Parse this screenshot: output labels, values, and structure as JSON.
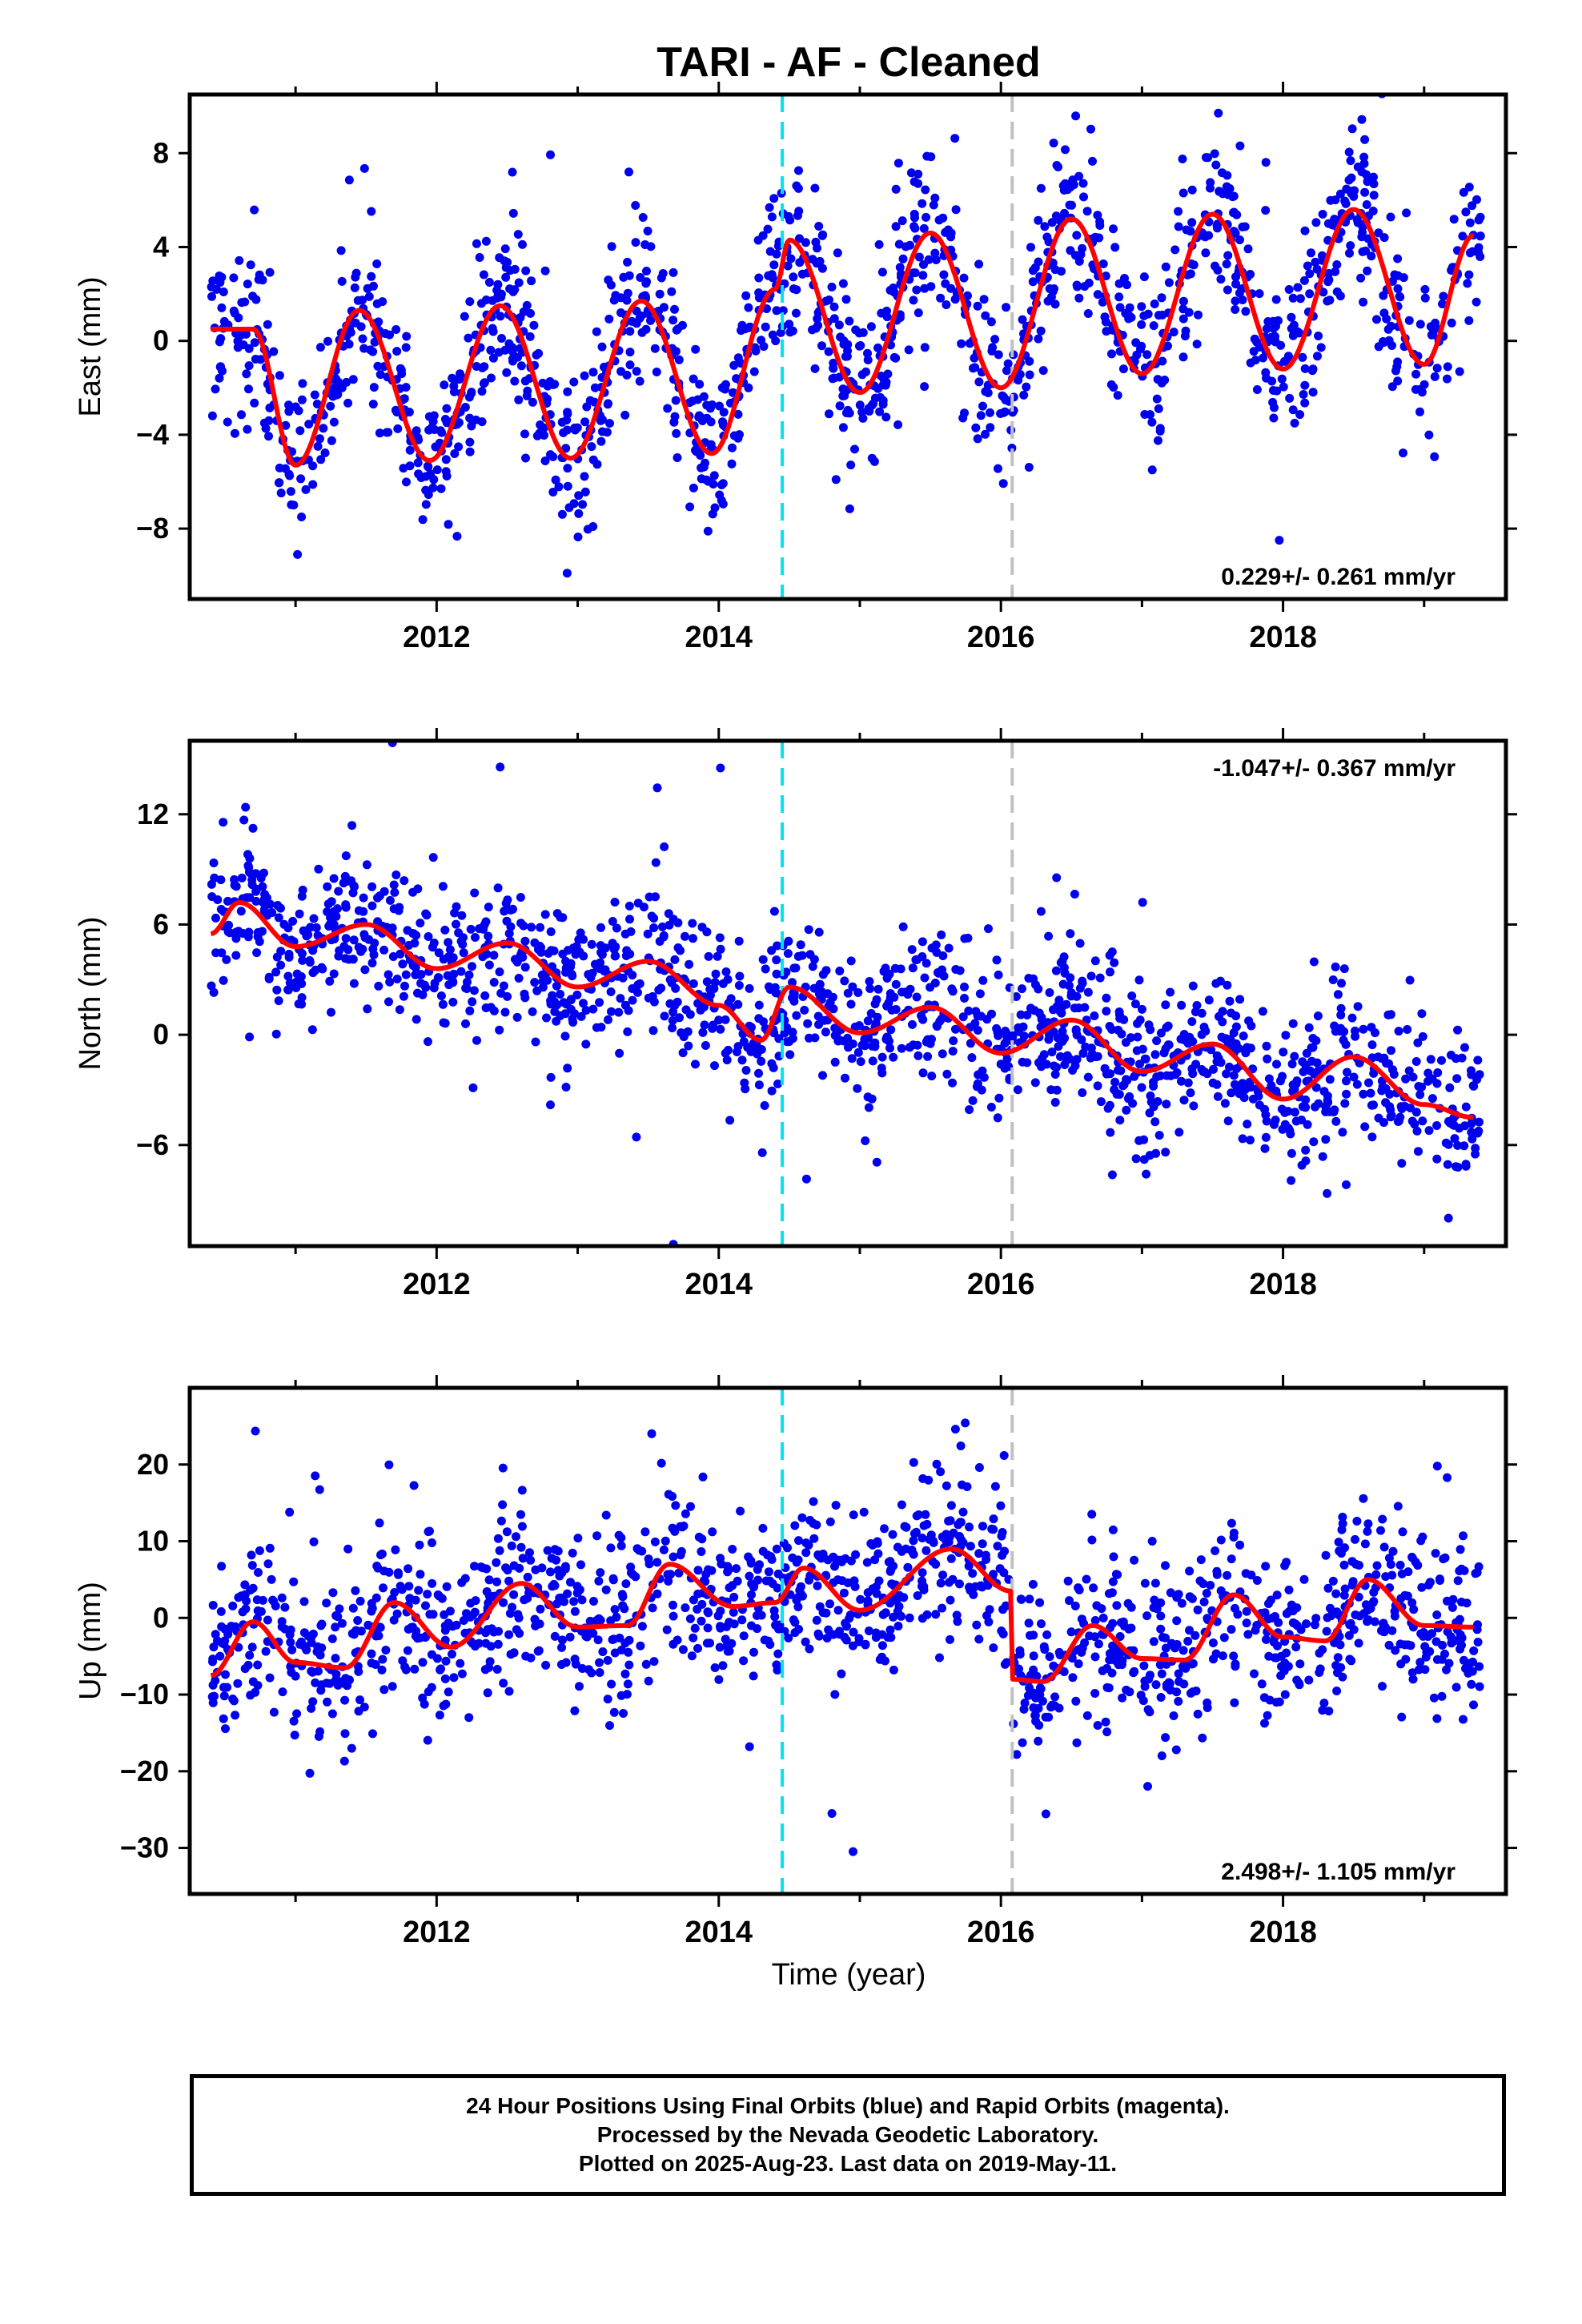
{
  "title": "TARI  - AF - Cleaned",
  "xlabel": "Time (year)",
  "footer": {
    "line1": "24 Hour Positions Using Final Orbits (blue) and Rapid Orbits (magenta).",
    "line2": "Processed by the Nevada Geodetic Laboratory.",
    "line3": "Plotted on 2025-Aug-23. Last data on 2019-May-11."
  },
  "colors": {
    "points": "#0000ee",
    "model": "#ff0000",
    "equipment_change": "#00e5ee",
    "other_change": "#c0c0c0"
  },
  "chart_data": [
    {
      "type": "scatter",
      "name": "east",
      "ylabel": "East (mm)",
      "xlim": [
        2010.25,
        2019.58
      ],
      "ylim": [
        -11,
        10.5
      ],
      "yticks": [
        -8,
        -4,
        0,
        4,
        8
      ],
      "ytick_labels": [
        "−8",
        "−4",
        "0",
        "4",
        "8"
      ],
      "xticks": [
        2012,
        2014,
        2016,
        2018
      ],
      "xtick_labels": [
        "2012",
        "2014",
        "2016",
        "2018"
      ],
      "vlines": [
        {
          "x": 2014.45,
          "style": "cyan-dashed"
        },
        {
          "x": 2016.08,
          "style": "gray-dashed"
        }
      ],
      "rate_text": "0.229+/- 0.261 mm/yr",
      "rate_pos": "bottom-right",
      "model": {
        "x": [
          2010.4,
          2010.7,
          2011.0,
          2011.45,
          2011.95,
          2012.45,
          2012.95,
          2013.45,
          2013.95,
          2014.4,
          2014.5,
          2015.0,
          2015.5,
          2016.0,
          2016.5,
          2017.0,
          2017.5,
          2018.0,
          2018.5,
          2019.0,
          2019.35
        ],
        "y": [
          0.5,
          0.5,
          -5.3,
          1.3,
          -5.1,
          1.5,
          -5.0,
          1.7,
          -4.8,
          2.2,
          4.3,
          -2.2,
          4.6,
          -2.0,
          5.2,
          -1.4,
          5.4,
          -1.2,
          5.6,
          -1.0,
          4.5
        ]
      },
      "scatter": {
        "amplitude": 3.2,
        "spread": 1.8,
        "count": 1500
      }
    },
    {
      "type": "scatter",
      "name": "north",
      "ylabel": "North (mm)",
      "xlim": [
        2010.25,
        2019.58
      ],
      "ylim": [
        -11.5,
        16
      ],
      "yticks": [
        -6,
        0,
        6,
        12
      ],
      "ytick_labels": [
        "−6",
        "0",
        "6",
        "12"
      ],
      "xticks": [
        2012,
        2014,
        2016,
        2018
      ],
      "xtick_labels": [
        "2012",
        "2014",
        "2016",
        "2018"
      ],
      "vlines": [
        {
          "x": 2014.45,
          "style": "cyan-dashed"
        },
        {
          "x": 2016.08,
          "style": "gray-dashed"
        }
      ],
      "rate_text": "-1.047+/- 0.367 mm/yr",
      "rate_pos": "top-right",
      "model": {
        "x": [
          2010.4,
          2010.6,
          2011.0,
          2011.5,
          2012.0,
          2012.5,
          2013.0,
          2013.5,
          2014.0,
          2014.3,
          2014.5,
          2015.0,
          2015.5,
          2016.0,
          2016.5,
          2017.0,
          2017.5,
          2018.0,
          2018.5,
          2019.0,
          2019.35
        ],
        "y": [
          5.5,
          7.2,
          4.8,
          6.0,
          3.6,
          5.0,
          2.6,
          4.0,
          1.6,
          -0.3,
          2.6,
          0.1,
          1.5,
          -1.0,
          0.8,
          -2.0,
          -0.5,
          -3.5,
          -1.2,
          -3.8,
          -4.5
        ]
      },
      "scatter": {
        "amplitude": 1.5,
        "spread": 2.0,
        "count": 1500
      }
    },
    {
      "type": "scatter",
      "name": "up",
      "ylabel": "Up (mm)",
      "xlim": [
        2010.25,
        2019.58
      ],
      "ylim": [
        -36,
        30
      ],
      "yticks": [
        -30,
        -20,
        -10,
        0,
        10,
        20
      ],
      "ytick_labels": [
        "−30",
        "−20",
        "−10",
        "0",
        "10",
        "20"
      ],
      "xticks": [
        2012,
        2014,
        2016,
        2018
      ],
      "xtick_labels": [
        "2012",
        "2014",
        "2016",
        "2018"
      ],
      "vlines": [
        {
          "x": 2014.45,
          "style": "cyan-dashed"
        },
        {
          "x": 2016.08,
          "style": "gray-dashed"
        }
      ],
      "rate_text": "2.498+/- 1.105 mm/yr",
      "rate_pos": "bottom-right",
      "model": {
        "x": [
          2010.4,
          2010.7,
          2011.0,
          2011.35,
          2011.7,
          2012.1,
          2012.6,
          2013.0,
          2013.35,
          2013.65,
          2014.1,
          2014.4,
          2014.6,
          2015.0,
          2015.65,
          2016.07,
          2016.08,
          2016.3,
          2016.65,
          2017.0,
          2017.3,
          2017.65,
          2018.0,
          2018.3,
          2018.6,
          2019.0,
          2019.35
        ],
        "y": [
          -7.5,
          -0.5,
          -5.8,
          -6.5,
          2.0,
          -3.8,
          4.5,
          -1.2,
          -1.0,
          7.0,
          1.5,
          2.0,
          6.5,
          1.0,
          9.0,
          3.5,
          -8.0,
          -8.3,
          -1.0,
          -5.3,
          -5.5,
          3.0,
          -2.5,
          -3.0,
          5.0,
          -1.0,
          -1.2
        ]
      },
      "scatter": {
        "amplitude": 3.0,
        "spread": 5.5,
        "count": 1500
      }
    }
  ]
}
